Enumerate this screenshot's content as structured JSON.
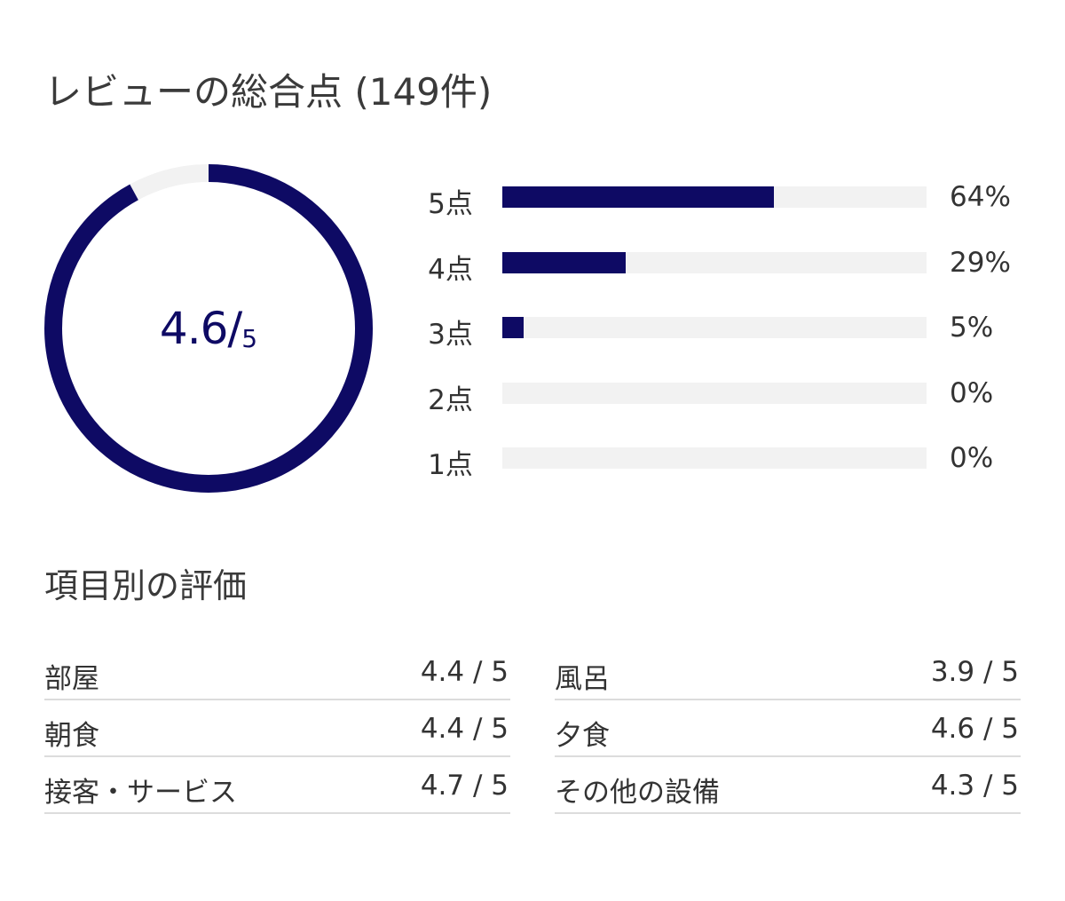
{
  "review": {
    "title": "レビューの総合点 (149件)",
    "score": "4.6/",
    "score_max": "5",
    "score_fraction": 0.92,
    "colors": {
      "accent": "#0e0a64",
      "track": "#f2f2f2",
      "divider": "#dcdcdc"
    }
  },
  "breakdown": [
    {
      "label": "5点",
      "percent_text": "64%",
      "percent": 64
    },
    {
      "label": "4点",
      "percent_text": "29%",
      "percent": 29
    },
    {
      "label": "3点",
      "percent_text": "5%",
      "percent": 5
    },
    {
      "label": "2点",
      "percent_text": "0%",
      "percent": 0
    },
    {
      "label": "1点",
      "percent_text": "0%",
      "percent": 0
    }
  ],
  "categories": {
    "title": "項目別の評価",
    "left": [
      {
        "name": "部屋",
        "score": "4.4 / 5"
      },
      {
        "name": "朝食",
        "score": "4.4 / 5"
      },
      {
        "name": "接客・サービス",
        "score": "4.7 / 5"
      }
    ],
    "right": [
      {
        "name": "風呂",
        "score": "3.9 / 5"
      },
      {
        "name": "夕食",
        "score": "4.6 / 5"
      },
      {
        "name": "その他の設備",
        "score": "4.3 / 5"
      }
    ]
  }
}
